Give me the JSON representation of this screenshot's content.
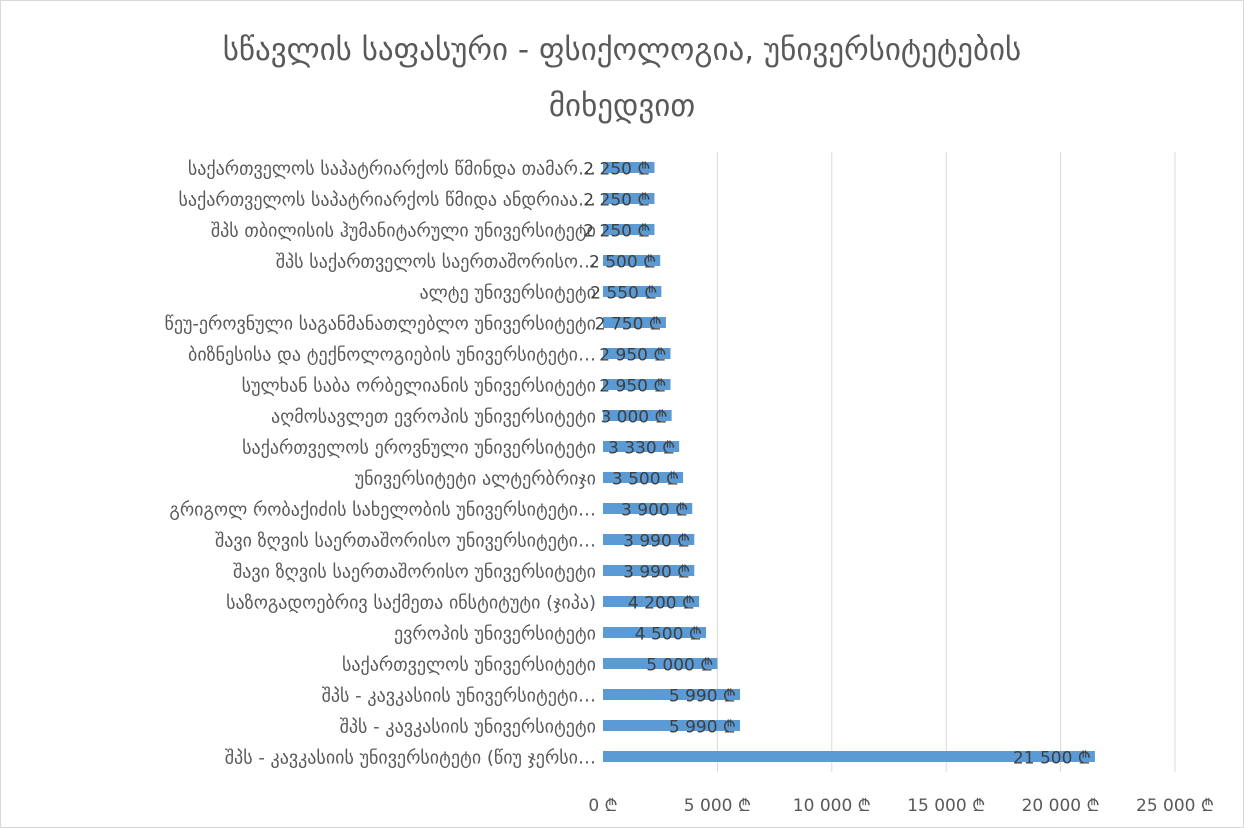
{
  "chart_data": {
    "type": "bar",
    "orientation": "horizontal",
    "title_lines": [
      "სწავლის საფასური - ფსიქოლოგია, უნივერსიტეტების",
      "მიხედვით"
    ],
    "categories": [
      "საქართველოს საპატრიარქოს წმინდა თამარ…",
      "საქართველოს საპატრიარქოს წმიდა ანდრიაა…",
      "შპს თბილისის ჰუმანიტარული უნივერსიტეტი",
      "შპს საქართველოს საერთაშორისო…",
      "ალტე უნივერსიტეტი",
      "წეუ-ეროვნული საგანმანათლებლო უნივერსიტეტი",
      "ბიზნესისა და ტექნოლოგიების უნივერსიტეტი…",
      "სულხან საბა ორბელიანის უნივერსიტეტი",
      "აღმოსავლეთ ევროპის უნივერსიტეტი",
      "საქართველოს ეროვნული უნივერსიტეტი",
      "უნივერსიტეტი ალტერბრიჯი",
      "გრიგოლ რობაქიძის სახელობის უნივერსიტეტი…",
      "შავი ზღვის საერთაშორისო უნივერსიტეტი…",
      "შავი ზღვის საერთაშორისო უნივერსიტეტი",
      "საზოგადოებრივ საქმეთა ინსტიტუტი (ჯიპა)",
      "ევროპის უნივერსიტეტი",
      "საქართველოს უნივერსიტეტი",
      "შპს - კავკასიის უნივერსიტეტი…",
      "შპს - კავკასიის უნივერსიტეტი",
      "შპს - კავკასიის უნივერსიტეტი (წიუ ჯერსი…"
    ],
    "values": [
      2250,
      2250,
      2250,
      2500,
      2550,
      2750,
      2950,
      2950,
      3000,
      3330,
      3500,
      3900,
      3990,
      3990,
      4200,
      4500,
      5000,
      5990,
      5990,
      21500
    ],
    "data_labels": [
      "2 250 ₾",
      "2 250 ₾",
      "2 250 ₾",
      "2 500 ₾",
      "2 550 ₾",
      "2 750 ₾",
      "2 950 ₾",
      "2 950 ₾",
      "3 000 ₾",
      "3 330 ₾",
      "3 500 ₾",
      "3 900 ₾",
      "3 990 ₾",
      "3 990 ₾",
      "4 200 ₾",
      "4 500 ₾",
      "5 000 ₾",
      "5 990 ₾",
      "5 990 ₾",
      "21 500 ₾"
    ],
    "xlim": [
      0,
      25000
    ],
    "xticks": [
      0,
      5000,
      10000,
      15000,
      20000,
      25000
    ],
    "xtick_labels": [
      "0 ₾",
      "5 000 ₾",
      "10 000 ₾",
      "15 000 ₾",
      "20 000 ₾",
      "25 000 ₾"
    ],
    "grid": "vertical",
    "legend": "none",
    "colors": {
      "bar": "#5b9bd5",
      "grid": "#d9d9d9",
      "text": "#595959",
      "label": "#404040"
    }
  }
}
